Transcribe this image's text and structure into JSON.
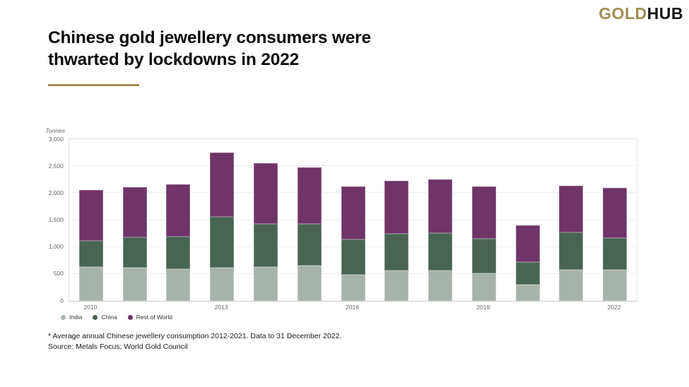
{
  "logo": {
    "gold": "GOLD",
    "hub": "HUB"
  },
  "title": {
    "line1": "Chinese gold jewellery consumers were",
    "line2": "thwarted by lockdowns in 2022"
  },
  "chart_data": {
    "type": "bar",
    "stacked": true,
    "title": "Chinese gold jewellery consumers were thwarted by lockdowns in 2022",
    "ylabel": "Tonnes",
    "xlabel": "",
    "categories": [
      "2010",
      "2011",
      "2012",
      "2013",
      "2014",
      "2015",
      "2016",
      "2017",
      "2018",
      "2019",
      "2020",
      "2021",
      "2022"
    ],
    "x_tick_interval": 3,
    "series": [
      {
        "name": "India",
        "color": "#a7b3aa",
        "values": [
          635,
          615,
          585,
          615,
          635,
          660,
          490,
          565,
          560,
          515,
          295,
          575,
          575
        ]
      },
      {
        "name": "China",
        "color": "#486452",
        "values": [
          480,
          560,
          605,
          940,
          790,
          770,
          655,
          680,
          695,
          640,
          425,
          690,
          585
        ]
      },
      {
        "name": "Rest of World",
        "color": "#6f3468",
        "values": [
          940,
          935,
          975,
          1200,
          1125,
          1050,
          975,
          985,
          995,
          965,
          680,
          875,
          930
        ]
      }
    ],
    "ylim": [
      0,
      3000
    ],
    "y_ticks": [
      0,
      500,
      1000,
      1500,
      2000,
      2500,
      3000
    ],
    "y_tick_labels": [
      "0",
      "500",
      "1,000",
      "1,500",
      "2,000",
      "2,500",
      "3,000"
    ],
    "grid": true,
    "legend_position": "bottom-left"
  },
  "footnotes": {
    "note": "* Average annual Chinese jewellery consumption 2012-2021. Data to 31 December 2022.",
    "source": "Source: Metals Focus; World Gold Council"
  },
  "colors": {
    "accent_gold": "#a28d52",
    "india": "#a7b3aa",
    "china": "#486452",
    "rest_of_world": "#6f3468"
  }
}
